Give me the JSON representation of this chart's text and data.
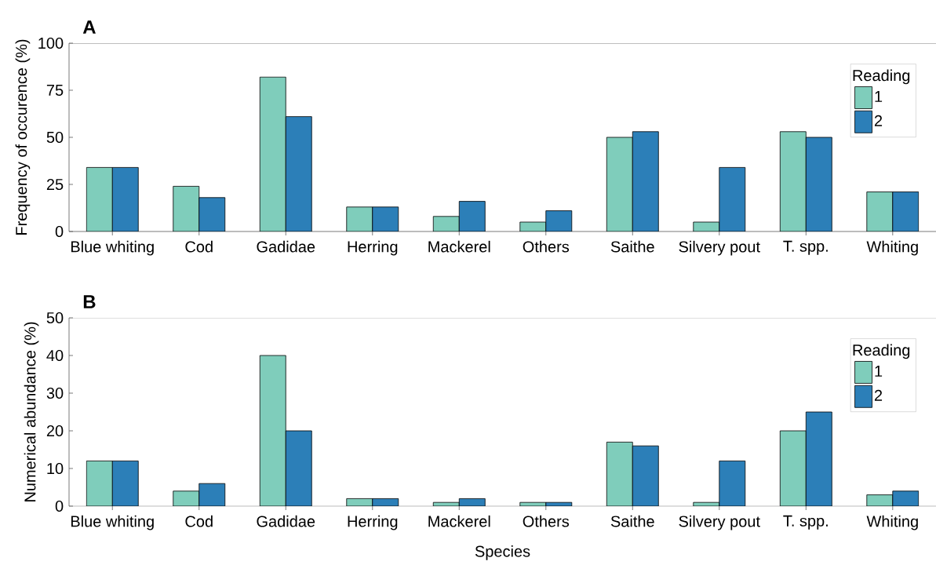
{
  "chart_data": [
    {
      "type": "bar",
      "title": "A",
      "ylabel": "Frequency of occurence (%)",
      "categories": [
        "Blue whiting",
        "Cod",
        "Gadidae",
        "Herring",
        "Mackerel",
        "Others",
        "Saithe",
        "Silvery pout",
        "T. spp.",
        "Whiting"
      ],
      "series": [
        {
          "name": "1",
          "color": "#7fcdbb",
          "values": [
            34,
            24,
            82,
            13,
            8,
            5,
            50,
            5,
            53,
            21
          ]
        },
        {
          "name": "2",
          "color": "#2c7fb8",
          "values": [
            34,
            18,
            61,
            13,
            16,
            11,
            53,
            34,
            50,
            21
          ]
        }
      ],
      "ylim": [
        0,
        100
      ],
      "yticks": [
        0,
        25,
        50,
        75,
        100
      ],
      "legend": "top right",
      "legend_title": "Reading"
    },
    {
      "type": "bar",
      "title": "B",
      "ylabel": "Numerical abundance (%)",
      "xlabel": "Species",
      "categories": [
        "Blue whiting",
        "Cod",
        "Gadidae",
        "Herring",
        "Mackerel",
        "Others",
        "Saithe",
        "Silvery pout",
        "T. spp.",
        "Whiting"
      ],
      "series": [
        {
          "name": "1",
          "color": "#7fcdbb",
          "values": [
            12,
            4,
            40,
            2,
            1,
            1,
            17,
            1,
            20,
            3
          ]
        },
        {
          "name": "2",
          "color": "#2c7fb8",
          "values": [
            12,
            6,
            20,
            2,
            2,
            1,
            16,
            12,
            25,
            4
          ]
        }
      ],
      "ylim": [
        0,
        50
      ],
      "yticks": [
        0,
        10,
        20,
        30,
        40,
        50
      ],
      "legend": "top right",
      "legend_title": "Reading"
    }
  ]
}
